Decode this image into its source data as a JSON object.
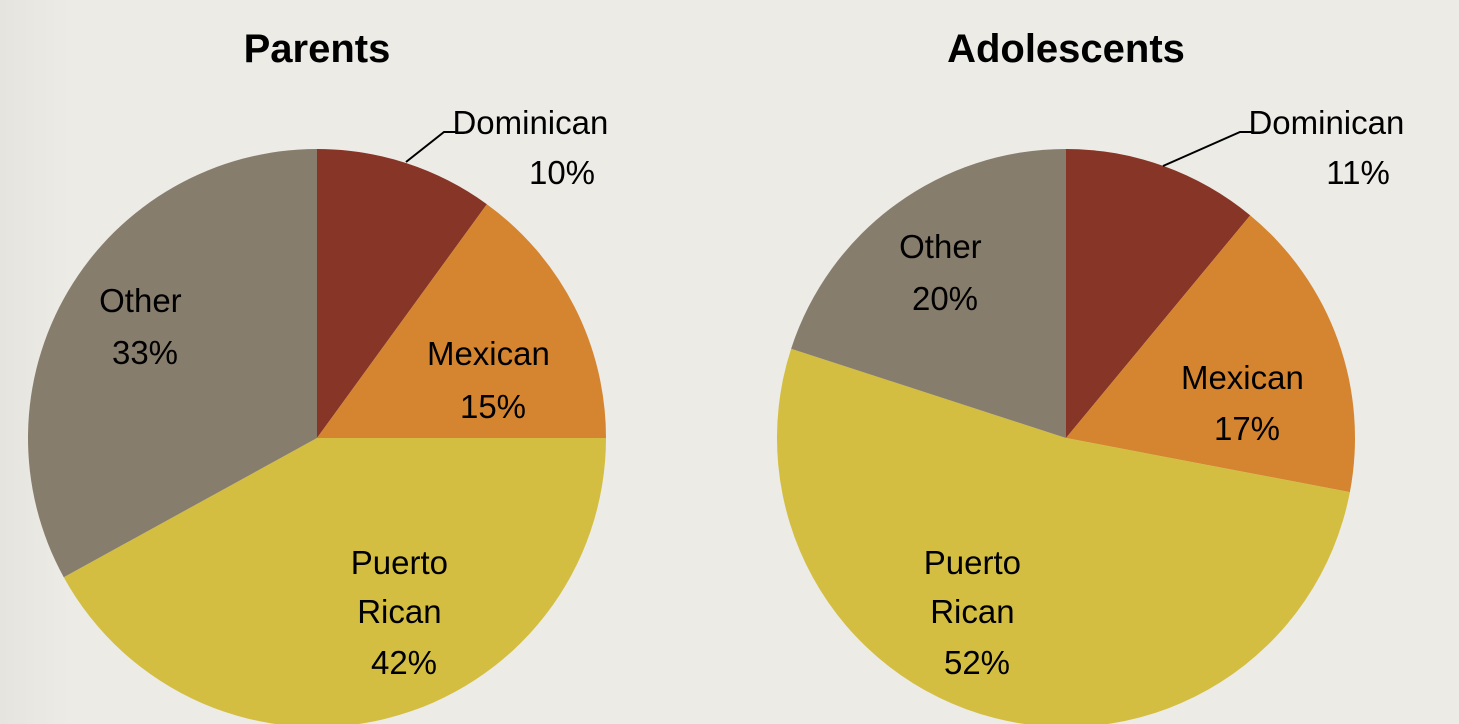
{
  "chart_data": [
    {
      "type": "pie",
      "title": "Parents",
      "start": "12 o'clock, clockwise",
      "slices": [
        {
          "label": "Dominican",
          "value": 10,
          "value_text": "10%",
          "color": "#873527"
        },
        {
          "label": "Mexican",
          "value": 15,
          "value_text": "15%",
          "color": "#D5852F"
        },
        {
          "label": "Puerto Rican",
          "value": 42,
          "value_text": "42%",
          "color": "#D3BE42"
        },
        {
          "label": "Other",
          "value": 33,
          "value_text": "33%",
          "color": "#877D6D"
        }
      ]
    },
    {
      "type": "pie",
      "title": "Adolescents",
      "start": "12 o'clock, clockwise",
      "slices": [
        {
          "label": "Dominican",
          "value": 11,
          "value_text": "11%",
          "color": "#873527"
        },
        {
          "label": "Mexican",
          "value": 17,
          "value_text": "17%",
          "color": "#D5852F"
        },
        {
          "label": "Puerto Rican",
          "value": 52,
          "value_text": "52%",
          "color": "#D3BE42"
        },
        {
          "label": "Other",
          "value": 20,
          "value_text": "20%",
          "color": "#877D6D"
        }
      ]
    }
  ]
}
